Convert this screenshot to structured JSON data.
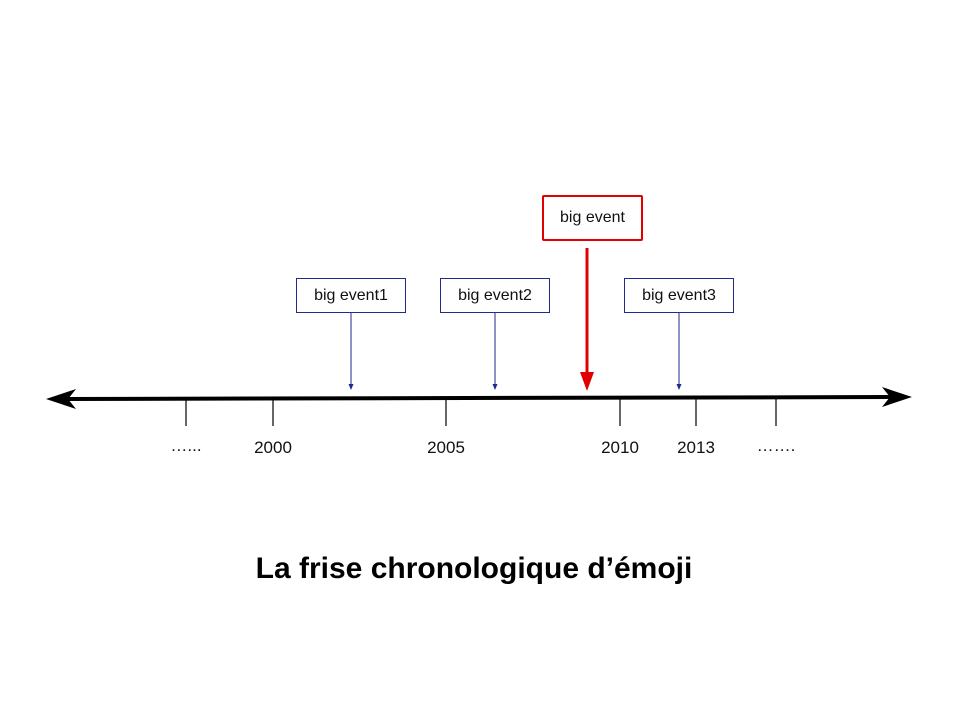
{
  "title": "La frise chronologique d’émoji",
  "colors": {
    "axis": "#000000",
    "minor_event": "#1f2a8a",
    "major_event": "#e00000"
  },
  "ticks": [
    {
      "label": "…..."
    },
    {
      "label": "2000"
    },
    {
      "label": "2005"
    },
    {
      "label": "2010"
    },
    {
      "label": "2013"
    },
    {
      "label": "……."
    }
  ],
  "events": [
    {
      "label": "big event1",
      "kind": "minor"
    },
    {
      "label": "big event2",
      "kind": "minor"
    },
    {
      "label": "big event",
      "kind": "major"
    },
    {
      "label": "big event3",
      "kind": "minor"
    }
  ]
}
